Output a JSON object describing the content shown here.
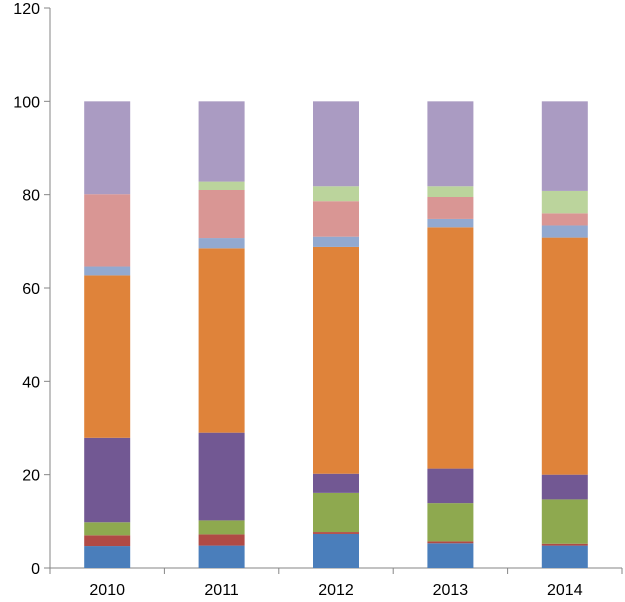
{
  "chart_data": {
    "type": "bar",
    "stacked": true,
    "title": "",
    "xlabel": "",
    "ylabel": "",
    "ylim": [
      0,
      120
    ],
    "yticks": [
      0,
      20,
      40,
      60,
      80,
      100,
      120
    ],
    "grid": false,
    "legend": "none",
    "categories": [
      "2010",
      "2011",
      "2012",
      "2013",
      "2014"
    ],
    "series": [
      {
        "color": "#4a7ebb",
        "values": [
          4.7,
          4.8,
          7.3,
          5.3,
          4.8
        ]
      },
      {
        "color": "#b04a45",
        "values": [
          2.3,
          2.4,
          0.4,
          0.4,
          0.4
        ]
      },
      {
        "color": "#8ea94f",
        "values": [
          2.8,
          3.0,
          8.4,
          8.2,
          9.5
        ]
      },
      {
        "color": "#725893",
        "values": [
          18.1,
          18.8,
          4.1,
          7.4,
          5.3
        ]
      },
      {
        "color": "#df833a",
        "values": [
          34.8,
          39.5,
          48.6,
          51.7,
          50.8
        ]
      },
      {
        "color": "#92a9d0",
        "values": [
          1.9,
          2.2,
          2.2,
          1.8,
          2.6
        ]
      },
      {
        "color": "#d99694",
        "values": [
          15.5,
          10.3,
          7.6,
          4.7,
          2.6
        ]
      },
      {
        "color": "#bbd49c",
        "values": [
          0.0,
          1.8,
          3.2,
          2.3,
          4.8
        ]
      },
      {
        "color": "#aa9bc2",
        "values": [
          19.9,
          17.2,
          18.2,
          18.2,
          19.2
        ]
      }
    ]
  }
}
